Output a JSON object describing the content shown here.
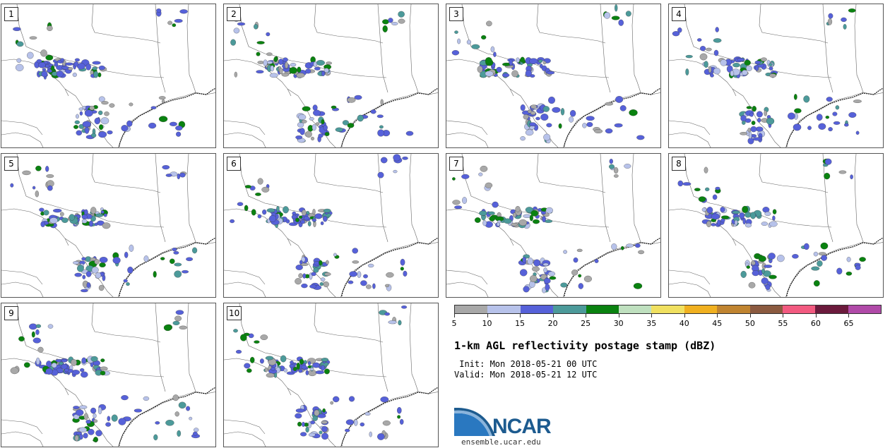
{
  "panels": [
    {
      "label": "1"
    },
    {
      "label": "2"
    },
    {
      "label": "3"
    },
    {
      "label": "4"
    },
    {
      "label": "5"
    },
    {
      "label": "6"
    },
    {
      "label": "7"
    },
    {
      "label": "8"
    },
    {
      "label": "9"
    },
    {
      "label": "10"
    }
  ],
  "colorbar": {
    "colors": [
      "#a8a8a8",
      "#b7c2ea",
      "#5661d9",
      "#4c9a9a",
      "#0a8210",
      "#bfe0bf",
      "#f0e060",
      "#f0b020",
      "#c08430",
      "#8b5a40",
      "#f25a80",
      "#6b1a3c",
      "#b04aa8"
    ],
    "tick_labels": [
      "5",
      "10",
      "15",
      "20",
      "25",
      "30",
      "35",
      "40",
      "45",
      "50",
      "55",
      "60",
      "65"
    ]
  },
  "title": "1-km AGL reflectivity postage stamp (dBZ)",
  "init": " Init: Mon 2018-05-21 00 UTC",
  "valid": "Valid: Mon 2018-05-21 12 UTC",
  "logo": {
    "text": "NCAR",
    "url": "ensemble.ucar.edu"
  }
}
